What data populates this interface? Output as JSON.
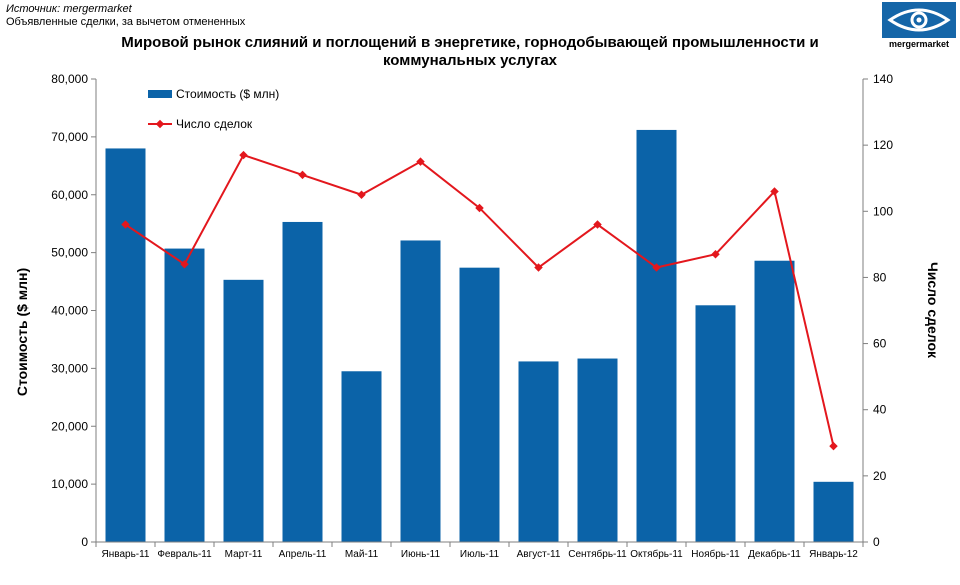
{
  "source": {
    "line1": "Источник: mergermarket",
    "line2": "Объявленные сделки, за вычетом  отмененных"
  },
  "logo": {
    "name": "mergermarket",
    "icon": "eye-fish-logo-icon"
  },
  "colors": {
    "bar": "#0b63a8",
    "line": "#e3171d",
    "axis": "#7f7f7f"
  },
  "chart_data": {
    "type": "bar",
    "title": "Мировой рынок слияний и поглощений в энергетике, горнодобывающей промышленности и коммунальных услугах",
    "categories": [
      "Январь-11",
      "Февраль-11",
      "Март-11",
      "Апрель-11",
      "Май-11",
      "Июнь-11",
      "Июль-11",
      "Август-11",
      "Сентябрь-11",
      "Октябрь-11",
      "Ноябрь-11",
      "Декабрь-11",
      "Январь-12"
    ],
    "series": [
      {
        "name": "Стоимость ($ млн)",
        "type": "bar",
        "axis": "left",
        "values": [
          68000,
          50700,
          45300,
          55300,
          29500,
          52100,
          47400,
          31200,
          31700,
          71200,
          40900,
          48600,
          10400
        ]
      },
      {
        "name": "Число сделок",
        "type": "line",
        "axis": "right",
        "values": [
          96,
          84,
          117,
          111,
          105,
          115,
          101,
          83,
          96,
          83,
          87,
          106,
          29
        ]
      }
    ],
    "ylabel": "Стоимость ($ млн)",
    "y2label": "Число сделок",
    "ylim": [
      0,
      80000
    ],
    "y2lim": [
      0,
      140
    ],
    "yticks": [
      "0",
      "10,000",
      "20,000",
      "30,000",
      "40,000",
      "50,000",
      "60,000",
      "70,000",
      "80,000"
    ],
    "y2ticks": [
      "0",
      "20",
      "40",
      "60",
      "80",
      "100",
      "120",
      "140"
    ],
    "legend_position": "top-left",
    "grid": false
  }
}
